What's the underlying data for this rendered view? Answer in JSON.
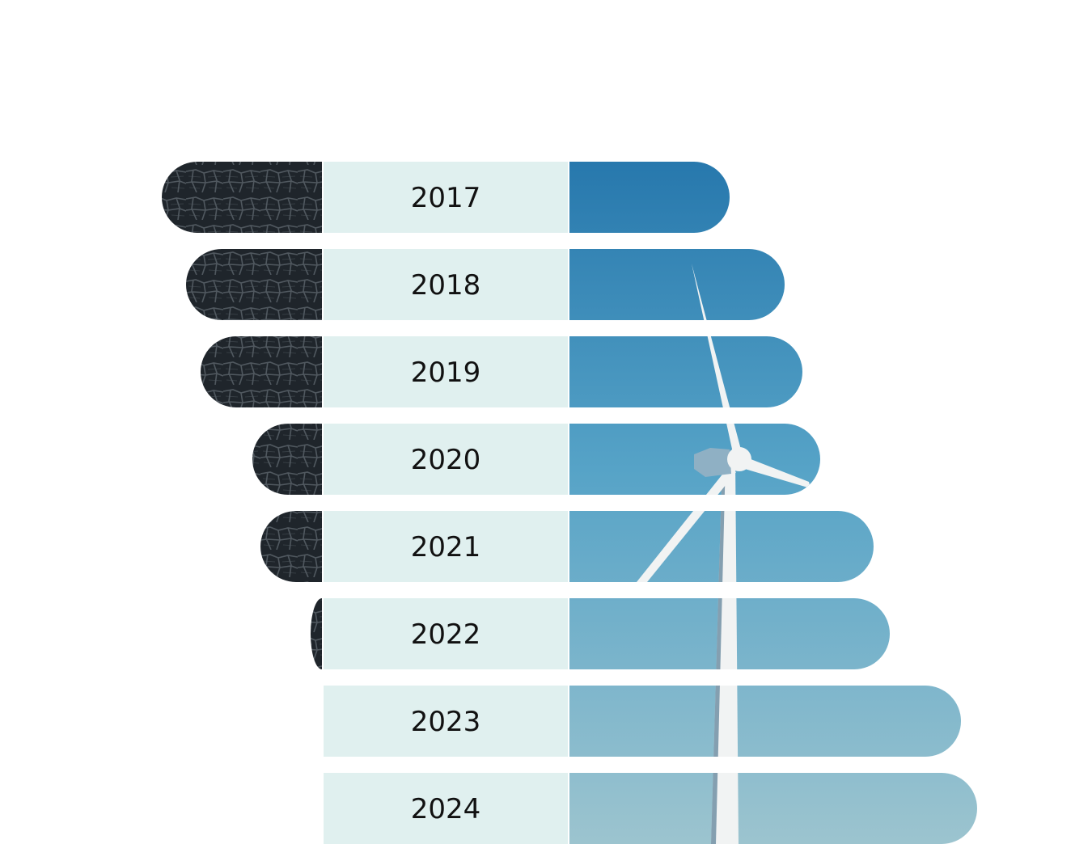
{
  "chart_data": {
    "type": "bar",
    "orientation": "diverging-horizontal",
    "title": "",
    "xlabel": "",
    "ylabel": "",
    "grid": false,
    "legend": "none",
    "categories": [
      "2017",
      "2018",
      "2019",
      "2020",
      "2021",
      "2022",
      "2023",
      "2024"
    ],
    "series": [
      {
        "values": [
          1.98,
          1.68,
          1.5,
          0.86,
          0.76,
          0.14,
          0.0,
          0.0
        ],
        "color": "#2b3238",
        "texture": "cracked-charred-ground"
      },
      {
        "values": [
          1.98,
          2.66,
          2.88,
          3.1,
          3.76,
          3.96,
          4.84,
          5.04
        ],
        "color": "#3a8dbf",
        "texture": "wind-turbine-sky"
      }
    ],
    "colors": {
      "label_band": "#e0f0ef",
      "sky_top": "#2778ad",
      "sky_mid": "#56a3c7",
      "sky_bottom": "#9cc4cf",
      "ground_dark": "#1f252b",
      "ground_crack": "#50585f",
      "turbine": "#f1f3f3",
      "text": "#111111"
    }
  }
}
